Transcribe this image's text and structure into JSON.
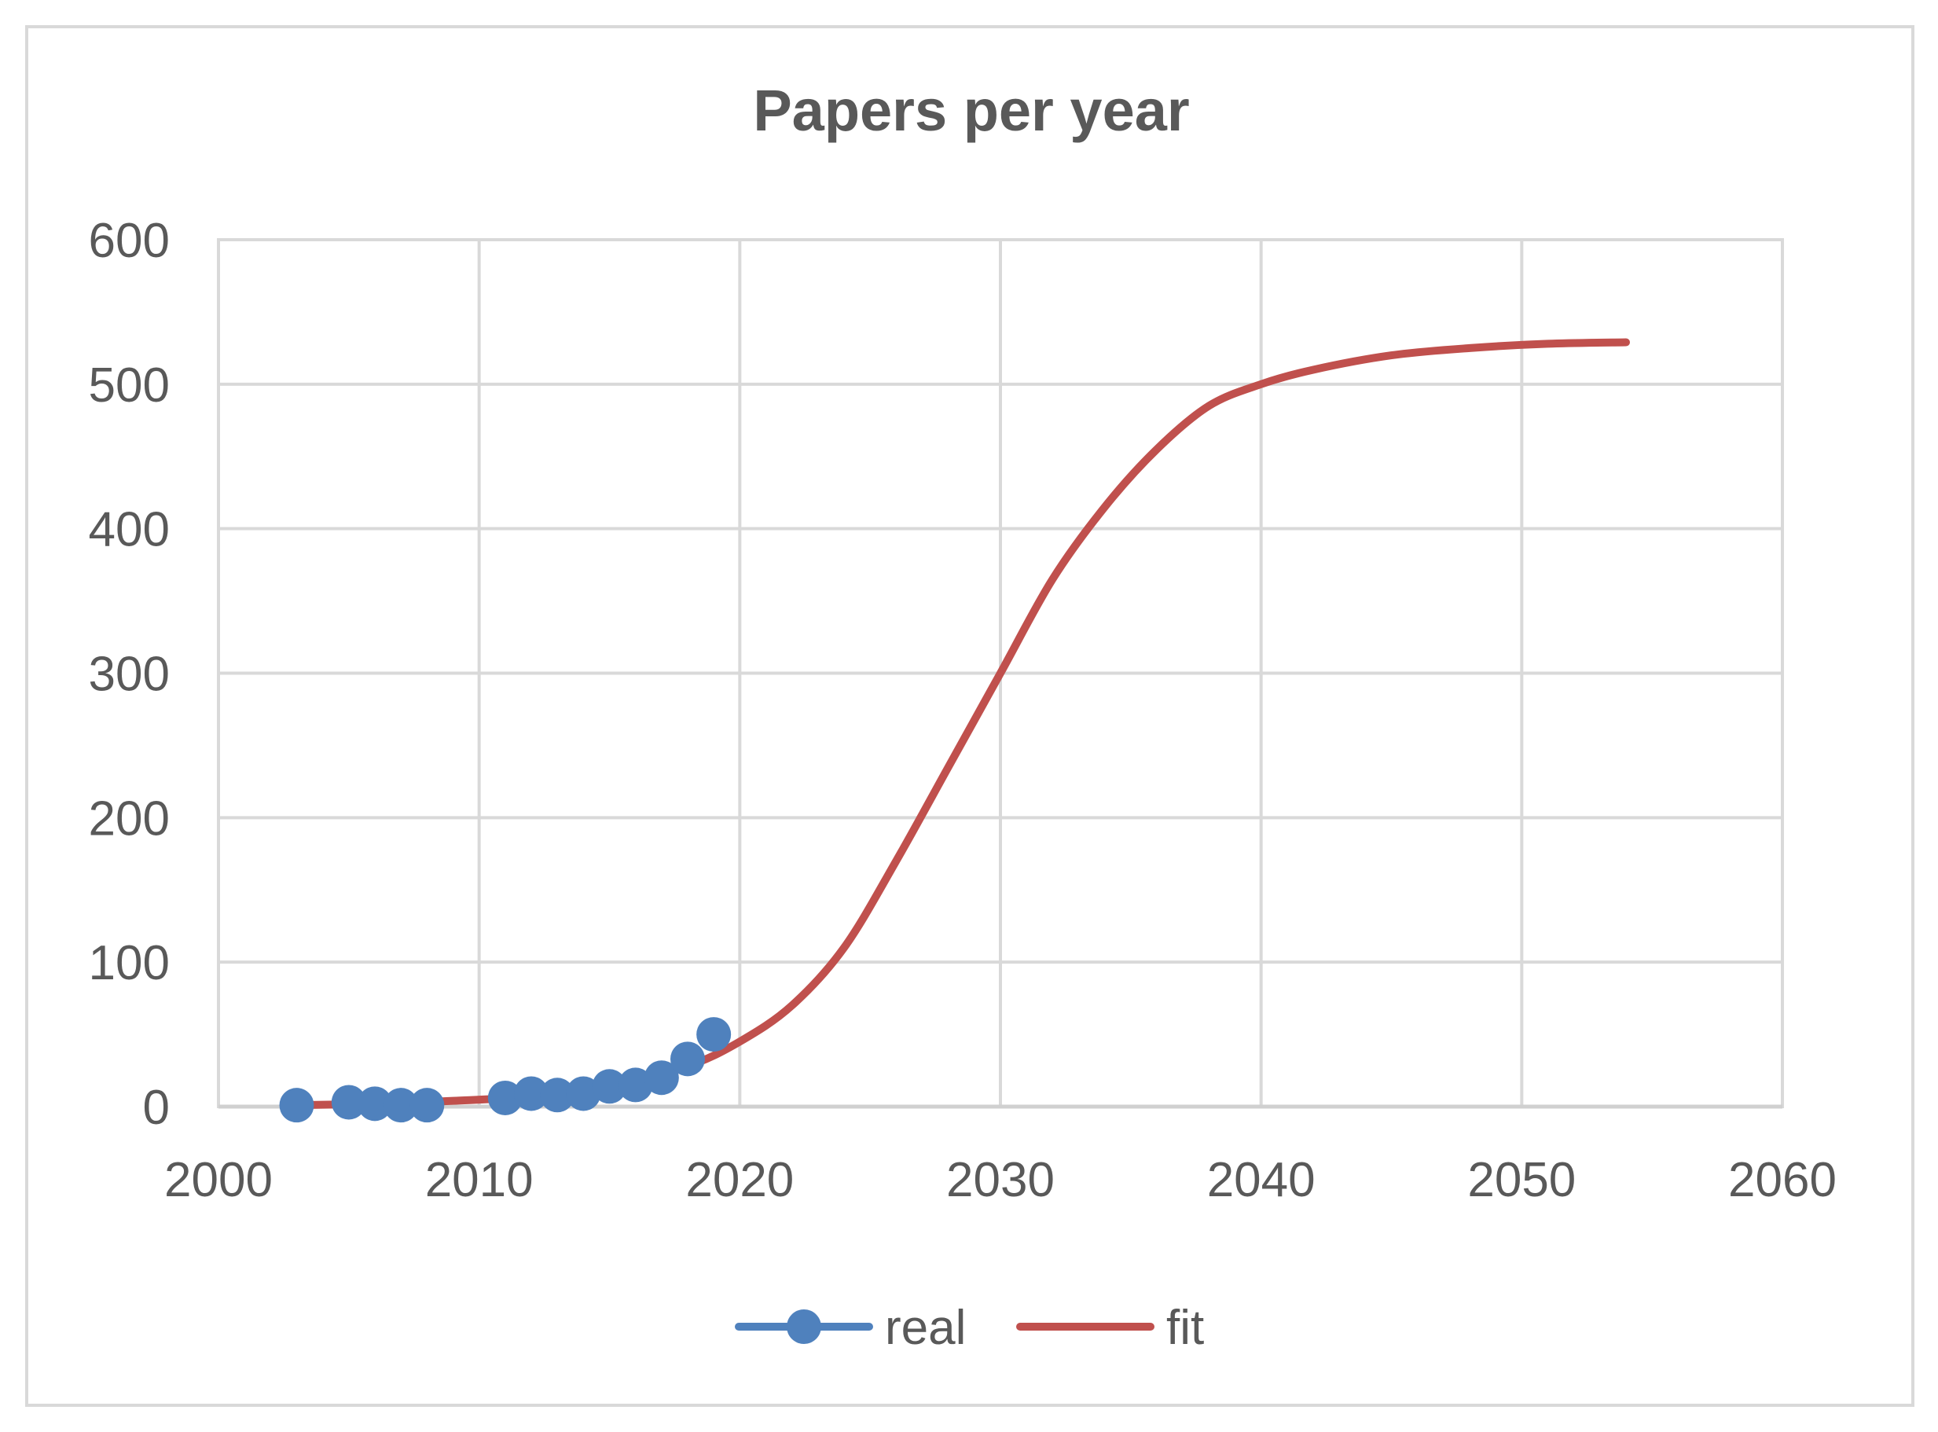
{
  "chart_data": {
    "type": "scatter",
    "title": "Papers per year",
    "xlabel": "",
    "ylabel": "",
    "xlim": [
      2000,
      2060
    ],
    "ylim": [
      0,
      600
    ],
    "x_ticks": [
      2000,
      2010,
      2020,
      2030,
      2040,
      2050,
      2060
    ],
    "y_ticks": [
      0,
      100,
      200,
      300,
      400,
      500,
      600
    ],
    "grid": true,
    "legend_position": "bottom",
    "series": [
      {
        "name": "real",
        "style": "markers",
        "color": "#4f81bd",
        "x": [
          2003,
          2005,
          2006,
          2007,
          2008,
          2011,
          2012,
          2013,
          2014,
          2015,
          2016,
          2017,
          2018,
          2019
        ],
        "y": [
          1,
          3,
          2,
          1,
          1,
          6,
          9,
          8,
          9,
          14,
          15,
          20,
          33,
          50
        ]
      },
      {
        "name": "fit",
        "style": "line",
        "color": "#c0504d",
        "x": [
          2003,
          2006,
          2009,
          2012,
          2015,
          2018,
          2020,
          2022,
          2024,
          2026,
          2028,
          2030,
          2032,
          2034,
          2036,
          2038,
          2040,
          2042,
          2045,
          2048,
          2051,
          2054
        ],
        "y": [
          1,
          2,
          4,
          7,
          14,
          28,
          45,
          70,
          110,
          170,
          235,
          300,
          365,
          415,
          455,
          485,
          500,
          510,
          520,
          525,
          528,
          529
        ]
      }
    ]
  }
}
